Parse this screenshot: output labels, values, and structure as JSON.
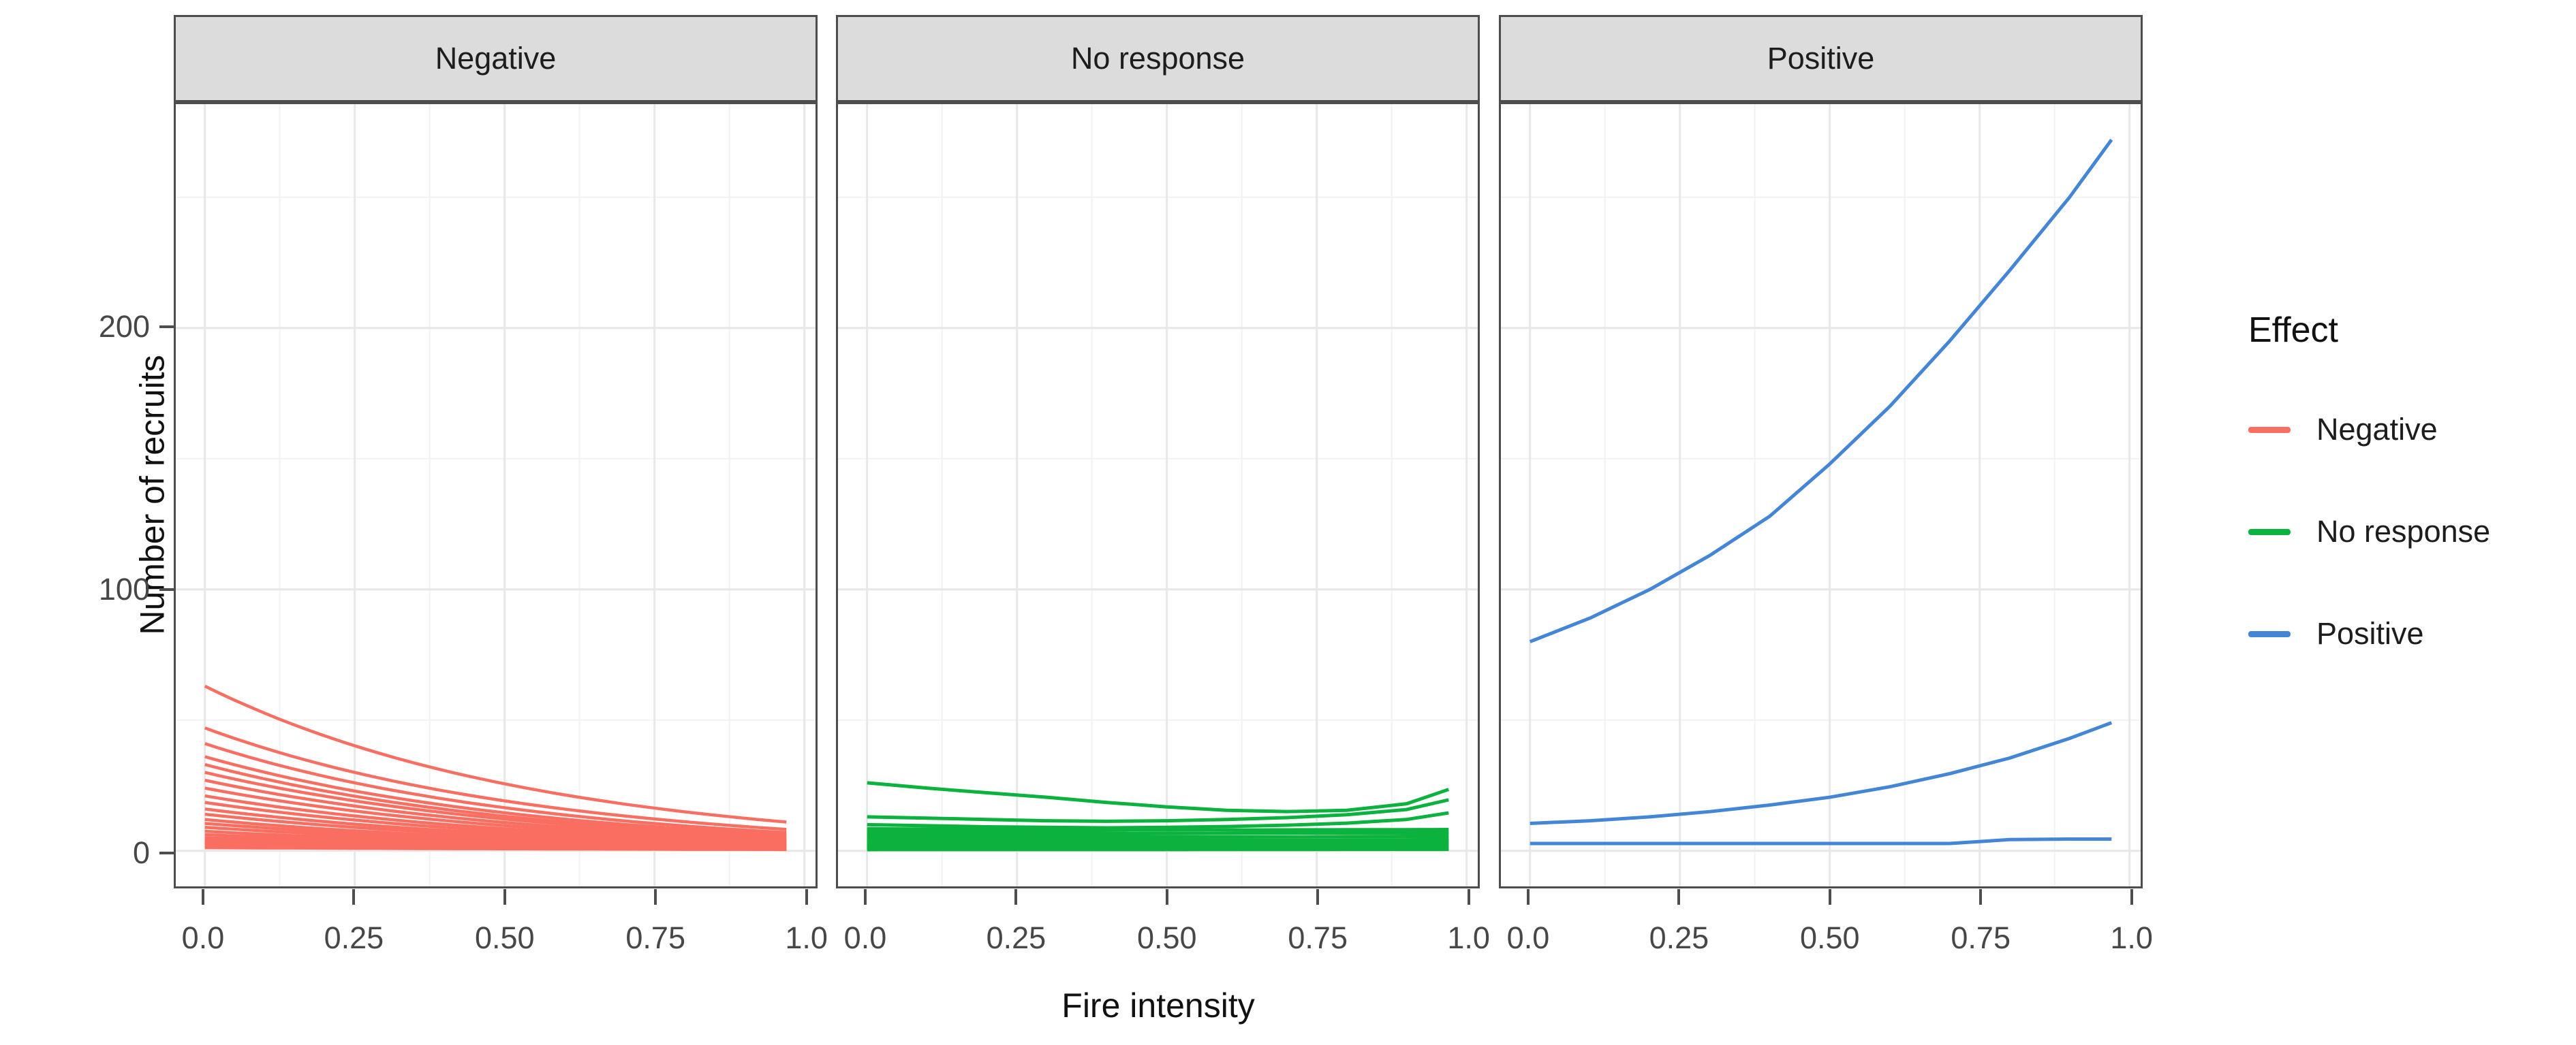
{
  "figure": {
    "y_axis": {
      "title": "Number of recruits",
      "tick_values": [
        0,
        100,
        200
      ],
      "tick_labels": [
        "0",
        "100",
        "200"
      ],
      "minor_values": [
        50,
        150,
        250
      ],
      "display_domain": [
        -13.6,
        285.6
      ]
    },
    "x_axis": {
      "title": "Fire intensity",
      "tick_values": [
        0,
        0.25,
        0.5,
        0.75,
        1.0
      ],
      "tick_labels": [
        "0.0",
        "0.25",
        "0.50",
        "0.75",
        "1.0"
      ],
      "minor_values": [
        0.125,
        0.375,
        0.625,
        0.875
      ],
      "display_domain": [
        -0.0485,
        1.0185
      ]
    },
    "legend": {
      "title": "Effect",
      "entries": [
        {
          "label": "Negative",
          "color": "#FA6E62"
        },
        {
          "label": "No response",
          "color": "#0CB23E"
        },
        {
          "label": "Positive",
          "color": "#4385D6"
        }
      ]
    },
    "colors": {
      "strip_fill": "#DCDCDC",
      "panel_border": "#4D4D4D",
      "grid_major": "#E7E7E7",
      "grid_minor": "#F2F2F2",
      "tick_text": "#474747"
    }
  },
  "chart_data": {
    "type": "line",
    "title": "",
    "xlabel": "Fire intensity",
    "ylabel": "Number of recruits",
    "x_range": [
      0,
      0.97
    ],
    "x_ticks": [
      0,
      0.25,
      0.5,
      0.75,
      1.0
    ],
    "y_ticks": [
      0,
      100,
      200
    ],
    "grid": "on",
    "legend_position": "right",
    "legend_title": "Effect",
    "facets": [
      {
        "label": "Negative",
        "color": "#FA6E62",
        "shape_note": "family of exponential-decay curves from x=0 to x=0.97",
        "series_exp": [
          {
            "y_start": 63,
            "y_end": 11
          },
          {
            "y_start": 47,
            "y_end": 8.2
          },
          {
            "y_start": 41,
            "y_end": 7
          },
          {
            "y_start": 36,
            "y_end": 6.2
          },
          {
            "y_start": 33,
            "y_end": 5.6
          },
          {
            "y_start": 30,
            "y_end": 5.2
          },
          {
            "y_start": 27,
            "y_end": 4.6
          },
          {
            "y_start": 24,
            "y_end": 4.1
          },
          {
            "y_start": 21,
            "y_end": 3.6
          },
          {
            "y_start": 18.5,
            "y_end": 3.2
          },
          {
            "y_start": 16,
            "y_end": 2.8
          },
          {
            "y_start": 14,
            "y_end": 2.5
          },
          {
            "y_start": 12,
            "y_end": 2.1
          },
          {
            "y_start": 10.5,
            "y_end": 1.9
          },
          {
            "y_start": 9,
            "y_end": 1.7
          },
          {
            "y_start": 7.5,
            "y_end": 1.4
          },
          {
            "y_start": 6.2,
            "y_end": 1.2
          },
          {
            "y_start": 5,
            "y_end": 1.0
          },
          {
            "y_start": 4,
            "y_end": 0.9
          },
          {
            "y_start": 3.2,
            "y_end": 0.8
          },
          {
            "y_start": 2.5,
            "y_end": 0.7
          },
          {
            "y_start": 1.8,
            "y_end": 0.6
          },
          {
            "y_start": 1.2,
            "y_end": 0.5
          }
        ],
        "series_points": []
      },
      {
        "label": "No response",
        "color": "#0CB23E",
        "shape_note": "nearly flat wiggly lines between 0 and 26",
        "series_points": [
          {
            "x": [
              0,
              0.1,
              0.2,
              0.3,
              0.4,
              0.5,
              0.6,
              0.7,
              0.8,
              0.9,
              0.97
            ],
            "y": [
              26,
              24,
              22.2,
              20.5,
              18.5,
              16.8,
              15.5,
              15,
              15.5,
              18,
              23.5
            ]
          },
          {
            "x": [
              0,
              0.1,
              0.2,
              0.3,
              0.4,
              0.5,
              0.6,
              0.7,
              0.8,
              0.9,
              0.97
            ],
            "y": [
              13,
              12.5,
              12,
              11.5,
              11.3,
              11.5,
              12,
              12.7,
              13.8,
              15.8,
              19.5
            ]
          },
          {
            "x": [
              0,
              0.1,
              0.2,
              0.3,
              0.4,
              0.5,
              0.6,
              0.7,
              0.8,
              0.9,
              0.97
            ],
            "y": [
              10,
              9.6,
              9.2,
              9,
              8.8,
              9,
              9.3,
              9.8,
              10.6,
              12,
              14.5
            ]
          }
        ],
        "series_exp": [
          {
            "y_start": 8.5,
            "y_end": 7.5
          },
          {
            "y_start": 7.8,
            "y_end": 8.2
          },
          {
            "y_start": 7,
            "y_end": 6.5
          },
          {
            "y_start": 6.3,
            "y_end": 6.8
          },
          {
            "y_start": 5.6,
            "y_end": 5.2
          },
          {
            "y_start": 5,
            "y_end": 5.4
          },
          {
            "y_start": 4.4,
            "y_end": 4
          },
          {
            "y_start": 3.8,
            "y_end": 4.1
          },
          {
            "y_start": 3.2,
            "y_end": 2.9
          },
          {
            "y_start": 2.6,
            "y_end": 2.9
          },
          {
            "y_start": 2.1,
            "y_end": 1.8
          },
          {
            "y_start": 1.6,
            "y_end": 1.8
          },
          {
            "y_start": 1.1,
            "y_end": 0.9
          },
          {
            "y_start": 0.7,
            "y_end": 0.8
          },
          {
            "y_start": 0.4,
            "y_end": 0.5
          }
        ]
      },
      {
        "label": "Positive",
        "color": "#4385D6",
        "shape_note": "three rising/flat curves",
        "series_points": [
          {
            "x": [
              0,
              0.1,
              0.2,
              0.3,
              0.4,
              0.5,
              0.6,
              0.7,
              0.8,
              0.9,
              0.97
            ],
            "y": [
              80,
              89,
              100,
              113,
              128,
              148,
              170,
              195,
              222,
              250,
              272
            ]
          },
          {
            "x": [
              0,
              0.1,
              0.2,
              0.3,
              0.4,
              0.5,
              0.6,
              0.7,
              0.8,
              0.9,
              0.97
            ],
            "y": [
              10.5,
              11.5,
              13,
              15,
              17.5,
              20.5,
              24.5,
              29.5,
              35.5,
              43,
              49
            ]
          },
          {
            "x": [
              0,
              0.1,
              0.2,
              0.3,
              0.4,
              0.5,
              0.6,
              0.7,
              0.8,
              0.9,
              0.97
            ],
            "y": [
              2.8,
              2.8,
              2.8,
              2.8,
              2.8,
              2.8,
              2.8,
              2.8,
              4.3,
              4.5,
              4.5
            ]
          }
        ],
        "series_exp": []
      }
    ]
  }
}
